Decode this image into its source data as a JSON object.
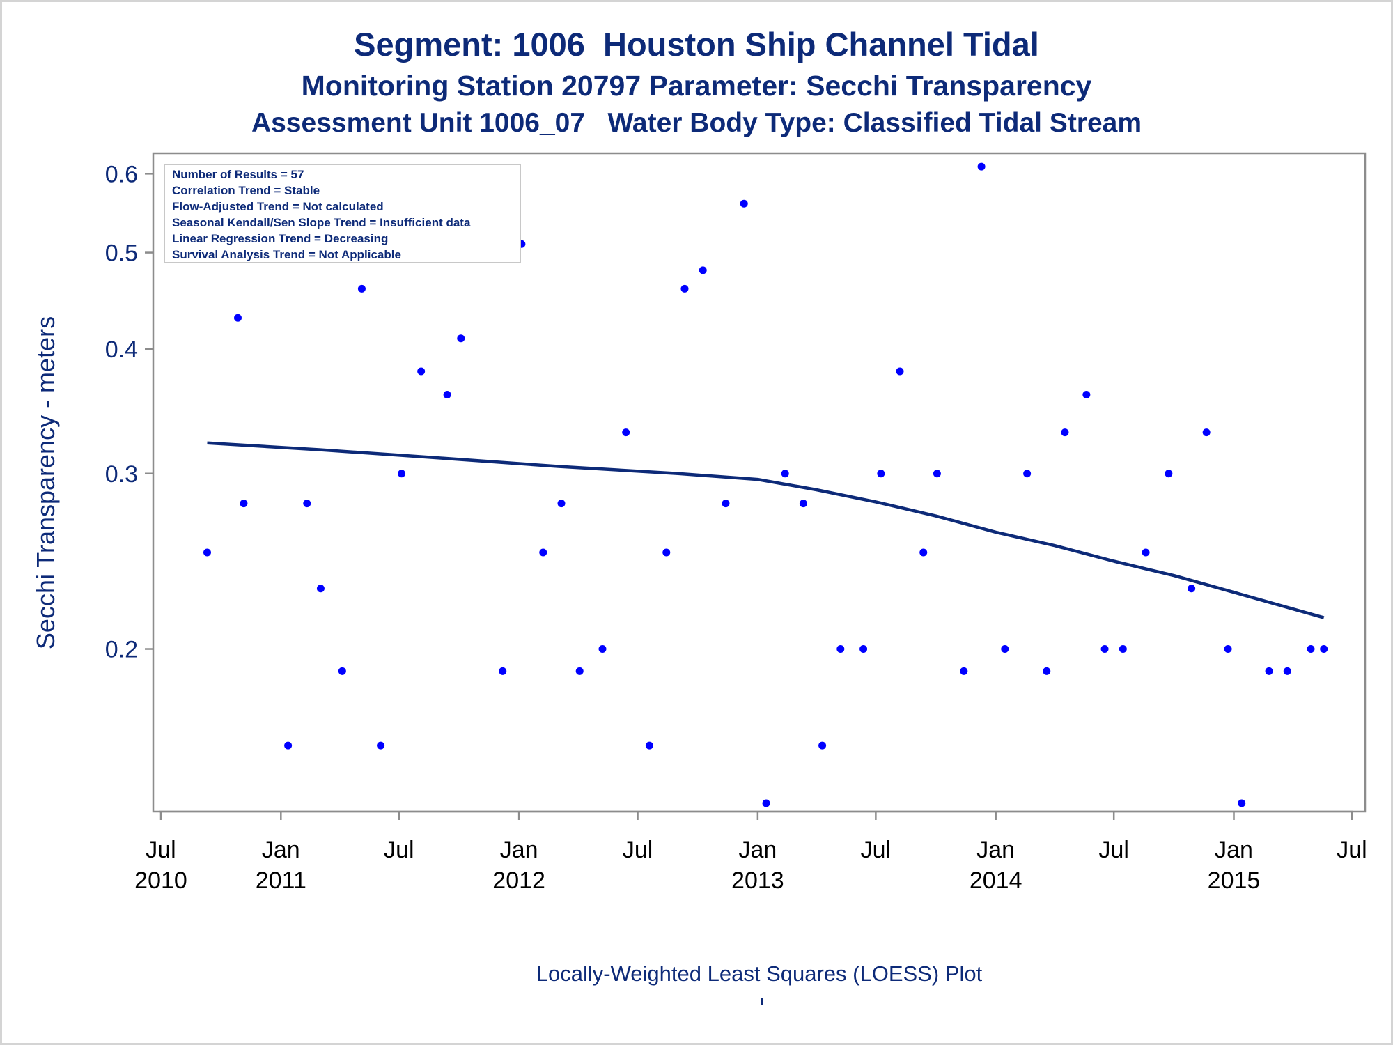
{
  "titles": {
    "line1": "Segment: 1006  Houston Ship Channel Tidal",
    "line2": "Monitoring Station 20797 Parameter: Secchi Transparency",
    "line3": "Assessment Unit 1006_07   Water Body Type: Classified Tidal Stream"
  },
  "stats_box": [
    "Number of Results = 57",
    "Correlation Trend = Stable",
    "Flow-Adjusted Trend = Not calculated",
    "Seasonal Kendall/Sen Slope Trend = Insufficient data",
    "Linear Regression Trend = Decreasing",
    "Survival Analysis Trend = Not Applicable"
  ],
  "footnote": "Locally-Weighted Least Squares (LOESS) Plot",
  "colors": {
    "text": "#0d2a78",
    "points": "#0000ff",
    "loess": "#0d2a78",
    "axis": "#8c8c8c"
  },
  "chart_data": {
    "type": "scatter",
    "ylabel": "Secchi Transparency - meters",
    "yscale": "log",
    "ylim": [
      0.14,
      0.62
    ],
    "yticks": [
      0.2,
      0.3,
      0.4,
      0.5,
      0.6
    ],
    "xlim": [
      "2010-07-01",
      "2015-07-01"
    ],
    "xticks": [
      {
        "date": "2010-07-01",
        "label1": "Jul",
        "label2": "2010"
      },
      {
        "date": "2011-01-01",
        "label1": "Jan",
        "label2": "2011"
      },
      {
        "date": "2011-07-01",
        "label1": "Jul",
        "label2": ""
      },
      {
        "date": "2012-01-01",
        "label1": "Jan",
        "label2": "2012"
      },
      {
        "date": "2012-07-01",
        "label1": "Jul",
        "label2": ""
      },
      {
        "date": "2013-01-01",
        "label1": "Jan",
        "label2": "2013"
      },
      {
        "date": "2013-07-01",
        "label1": "Jul",
        "label2": ""
      },
      {
        "date": "2014-01-01",
        "label1": "Jan",
        "label2": "2014"
      },
      {
        "date": "2014-07-01",
        "label1": "Jul",
        "label2": ""
      },
      {
        "date": "2015-01-01",
        "label1": "Jan",
        "label2": "2015"
      },
      {
        "date": "2015-07-01",
        "label1": "Jul",
        "label2": ""
      }
    ],
    "points": [
      {
        "date": "2010-09-10",
        "value": 0.25
      },
      {
        "date": "2010-10-27",
        "value": 0.43
      },
      {
        "date": "2010-11-05",
        "value": 0.28
      },
      {
        "date": "2010-11-30",
        "value": 0.53
      },
      {
        "date": "2011-01-12",
        "value": 0.16
      },
      {
        "date": "2011-02-10",
        "value": 0.28
      },
      {
        "date": "2011-03-03",
        "value": 0.23
      },
      {
        "date": "2011-04-05",
        "value": 0.19
      },
      {
        "date": "2011-05-05",
        "value": 0.46
      },
      {
        "date": "2011-06-03",
        "value": 0.16
      },
      {
        "date": "2011-07-05",
        "value": 0.3
      },
      {
        "date": "2011-08-04",
        "value": 0.38
      },
      {
        "date": "2011-09-13",
        "value": 0.36
      },
      {
        "date": "2011-10-04",
        "value": 0.41
      },
      {
        "date": "2011-11-02",
        "value": 0.51
      },
      {
        "date": "2011-12-07",
        "value": 0.19
      },
      {
        "date": "2012-01-05",
        "value": 0.51
      },
      {
        "date": "2012-02-07",
        "value": 0.25
      },
      {
        "date": "2012-03-06",
        "value": 0.28
      },
      {
        "date": "2012-04-03",
        "value": 0.19
      },
      {
        "date": "2012-05-08",
        "value": 0.2
      },
      {
        "date": "2012-06-13",
        "value": 0.33
      },
      {
        "date": "2012-07-19",
        "value": 0.16
      },
      {
        "date": "2012-08-14",
        "value": 0.25
      },
      {
        "date": "2012-09-11",
        "value": 0.46
      },
      {
        "date": "2012-10-09",
        "value": 0.48
      },
      {
        "date": "2012-11-13",
        "value": 0.28
      },
      {
        "date": "2012-12-11",
        "value": 0.56
      },
      {
        "date": "2013-01-14",
        "value": 0.14
      },
      {
        "date": "2013-02-12",
        "value": 0.3
      },
      {
        "date": "2013-03-12",
        "value": 0.28
      },
      {
        "date": "2013-04-10",
        "value": 0.16
      },
      {
        "date": "2013-05-08",
        "value": 0.2
      },
      {
        "date": "2013-06-12",
        "value": 0.2
      },
      {
        "date": "2013-07-09",
        "value": 0.3
      },
      {
        "date": "2013-08-07",
        "value": 0.38
      },
      {
        "date": "2013-09-12",
        "value": 0.25
      },
      {
        "date": "2013-10-03",
        "value": 0.3
      },
      {
        "date": "2013-11-13",
        "value": 0.19
      },
      {
        "date": "2013-12-10",
        "value": 0.61
      },
      {
        "date": "2014-01-15",
        "value": 0.2
      },
      {
        "date": "2014-02-18",
        "value": 0.3
      },
      {
        "date": "2014-03-20",
        "value": 0.19
      },
      {
        "date": "2014-04-17",
        "value": 0.33
      },
      {
        "date": "2014-05-20",
        "value": 0.36
      },
      {
        "date": "2014-06-17",
        "value": 0.2
      },
      {
        "date": "2014-07-15",
        "value": 0.2
      },
      {
        "date": "2014-08-19",
        "value": 0.25
      },
      {
        "date": "2014-09-23",
        "value": 0.3
      },
      {
        "date": "2014-10-28",
        "value": 0.23
      },
      {
        "date": "2014-11-20",
        "value": 0.33
      },
      {
        "date": "2014-12-23",
        "value": 0.2
      },
      {
        "date": "2015-01-13",
        "value": 0.14
      },
      {
        "date": "2015-02-24",
        "value": 0.19
      },
      {
        "date": "2015-03-24",
        "value": 0.19
      },
      {
        "date": "2015-04-29",
        "value": 0.2
      },
      {
        "date": "2015-05-19",
        "value": 0.2
      }
    ],
    "loess": [
      {
        "date": "2010-09-10",
        "value": 0.322
      },
      {
        "date": "2011-03-01",
        "value": 0.317
      },
      {
        "date": "2011-09-01",
        "value": 0.311
      },
      {
        "date": "2012-03-01",
        "value": 0.305
      },
      {
        "date": "2012-09-01",
        "value": 0.3
      },
      {
        "date": "2013-01-01",
        "value": 0.296
      },
      {
        "date": "2013-04-01",
        "value": 0.289
      },
      {
        "date": "2013-07-01",
        "value": 0.281
      },
      {
        "date": "2013-10-01",
        "value": 0.272
      },
      {
        "date": "2014-01-01",
        "value": 0.262
      },
      {
        "date": "2014-04-01",
        "value": 0.254
      },
      {
        "date": "2014-07-01",
        "value": 0.245
      },
      {
        "date": "2014-10-01",
        "value": 0.237
      },
      {
        "date": "2015-01-01",
        "value": 0.228
      },
      {
        "date": "2015-05-19",
        "value": 0.215
      }
    ]
  }
}
